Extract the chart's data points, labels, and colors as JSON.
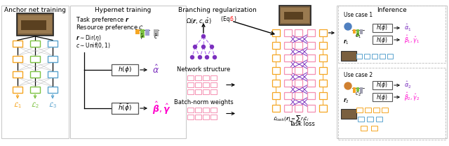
{
  "title_anchor": "Anchor net training",
  "title_hypernet": "Hypernet training",
  "title_inference": "Inference",
  "bg_color": "#ffffff",
  "orange_color": "#f5a623",
  "green_color": "#7dc242",
  "blue_color": "#5ba4cf",
  "gray_color": "#999999",
  "pink_color": "#f48fb1",
  "purple_color": "#7b2fbe",
  "light_purple": "#b57bee",
  "magenta": "#ff00cc",
  "dark": "#333333"
}
